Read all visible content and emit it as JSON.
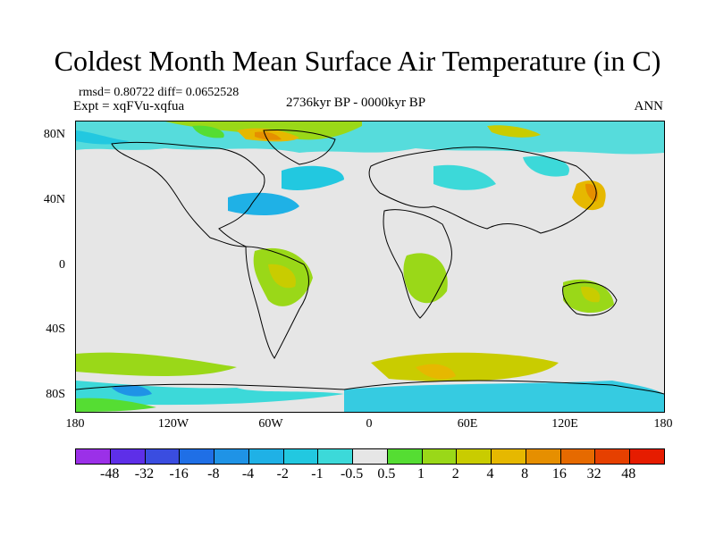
{
  "title": "Coldest Month Mean Surface Air Temperature (in C)",
  "stats": "rmsd= 0.80722  diff= 0.0652528",
  "experiment": "Expt = xqFVu-xqfua",
  "period": "2736kyr BP - 0000kyr BP",
  "season": "ANN",
  "map": {
    "x_ticks": [
      "180",
      "120W",
      "60W",
      "0",
      "60E",
      "120E",
      "180"
    ],
    "y_ticks": [
      "80N",
      "40N",
      "0",
      "40S",
      "80S"
    ],
    "ocean_color": "#e6e6e6"
  },
  "legend": {
    "colors": [
      "#9b30e8",
      "#5e2fe8",
      "#3a4de0",
      "#1f6fe6",
      "#1f93e6",
      "#1fb1e6",
      "#22c8e0",
      "#3cd9d9",
      "#e6e6e6",
      "#55dd33",
      "#9ad818",
      "#c9cc00",
      "#e6b800",
      "#e68f00",
      "#e66a00",
      "#e64000",
      "#e61c00"
    ],
    "labels": [
      "-48",
      "-32",
      "-16",
      "-8",
      "-4",
      "-2",
      "-1",
      "-0.5",
      "0.5",
      "1",
      "2",
      "4",
      "8",
      "16",
      "32",
      "48"
    ]
  }
}
